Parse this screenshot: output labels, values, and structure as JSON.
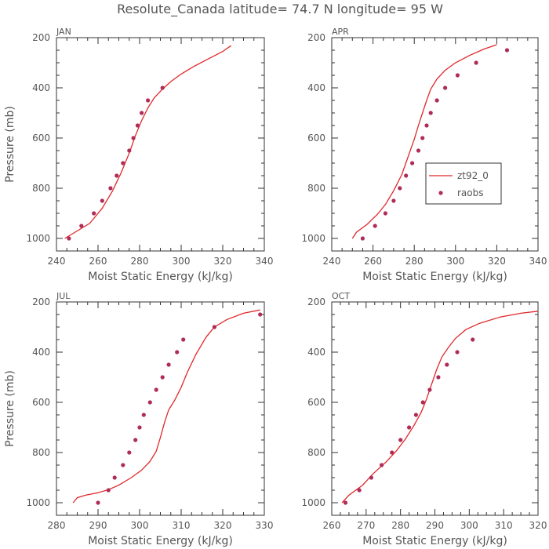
{
  "figure": {
    "title": "Resolute_Canada  latitude= 74.7 N longitude= 95 W"
  },
  "legend": {
    "panel": 1,
    "placement": "center-right",
    "entries": [
      {
        "label": "zt92_0",
        "kind": "line",
        "color": "#e0282a"
      },
      {
        "label": "raobs",
        "kind": "marker",
        "color": "#b02c58"
      }
    ]
  },
  "colors": {
    "model_line": "#e0282a",
    "raobs_marker": "#b02c58",
    "axes": "#333333",
    "text": "#555555"
  },
  "chart_data": [
    {
      "type": "line",
      "panel_label": "JAN",
      "xlabel": "Moist Static Energy (kJ/kg)",
      "ylabel": "Pressure (mb)",
      "xlim": [
        240,
        340
      ],
      "ylim": [
        1050,
        200
      ],
      "y_inverted": true,
      "xticks": [
        240,
        260,
        280,
        300,
        320,
        340
      ],
      "yticks": [
        200,
        400,
        600,
        800,
        1000
      ],
      "series": [
        {
          "name": "zt92_0",
          "kind": "line",
          "points": [
            [
              244,
              1000
            ],
            [
              249,
              975
            ],
            [
              256,
              940
            ],
            [
              262,
              880
            ],
            [
              267,
              810
            ],
            [
              271,
              740
            ],
            [
              275,
              660
            ],
            [
              278,
              590
            ],
            [
              281,
              530
            ],
            [
              284,
              480
            ],
            [
              287,
              440
            ],
            [
              291,
              405
            ],
            [
              295,
              375
            ],
            [
              300,
              345
            ],
            [
              306,
              315
            ],
            [
              313,
              285
            ],
            [
              320,
              255
            ],
            [
              324,
              232
            ]
          ]
        },
        {
          "name": "raobs",
          "kind": "marker",
          "points": [
            [
              246,
              1000
            ],
            [
              252,
              950
            ],
            [
              258,
              900
            ],
            [
              262,
              850
            ],
            [
              266,
              800
            ],
            [
              269,
              750
            ],
            [
              272,
              700
            ],
            [
              275,
              650
            ],
            [
              277,
              600
            ],
            [
              279,
              550
            ],
            [
              281,
              500
            ],
            [
              284,
              450
            ],
            [
              291,
              400
            ]
          ]
        }
      ]
    },
    {
      "type": "line",
      "panel_label": "APR",
      "xlabel": "Moist Static Energy (kJ/kg)",
      "ylabel": "",
      "xlim": [
        240,
        340
      ],
      "ylim": [
        1050,
        200
      ],
      "y_inverted": true,
      "xticks": [
        240,
        260,
        280,
        300,
        320,
        340
      ],
      "yticks": [
        200,
        400,
        600,
        800,
        1000
      ],
      "series": [
        {
          "name": "zt92_0",
          "kind": "line",
          "points": [
            [
              250,
              1000
            ],
            [
              252,
              975
            ],
            [
              257,
              945
            ],
            [
              262,
              905
            ],
            [
              266,
              865
            ],
            [
              270,
              810
            ],
            [
              274,
              745
            ],
            [
              277,
              675
            ],
            [
              280,
              605
            ],
            [
              282,
              550
            ],
            [
              284,
              500
            ],
            [
              286,
              450
            ],
            [
              288,
              405
            ],
            [
              291,
              365
            ],
            [
              295,
              330
            ],
            [
              300,
              300
            ],
            [
              307,
              270
            ],
            [
              314,
              245
            ],
            [
              320,
              228
            ]
          ]
        },
        {
          "name": "raobs",
          "kind": "marker",
          "points": [
            [
              255,
              1000
            ],
            [
              261,
              950
            ],
            [
              266,
              900
            ],
            [
              270,
              850
            ],
            [
              273,
              800
            ],
            [
              276,
              750
            ],
            [
              279,
              700
            ],
            [
              282,
              650
            ],
            [
              284,
              600
            ],
            [
              286,
              550
            ],
            [
              288,
              500
            ],
            [
              291,
              450
            ],
            [
              295,
              400
            ],
            [
              301,
              350
            ],
            [
              310,
              300
            ],
            [
              325,
              250
            ]
          ]
        }
      ]
    },
    {
      "type": "line",
      "panel_label": "JUL",
      "xlabel": "Moist Static Energy (kJ/kg)",
      "ylabel": "Pressure (mb)",
      "xlim": [
        280,
        330
      ],
      "ylim": [
        1050,
        200
      ],
      "y_inverted": true,
      "xticks": [
        280,
        290,
        300,
        310,
        320,
        330
      ],
      "yticks": [
        200,
        400,
        600,
        800,
        1000
      ],
      "series": [
        {
          "name": "zt92_0",
          "kind": "line",
          "points": [
            [
              284,
              1000
            ],
            [
              285,
              980
            ],
            [
              287,
              970
            ],
            [
              290,
              960
            ],
            [
              292.5,
              948
            ],
            [
              295,
              930
            ],
            [
              298,
              900
            ],
            [
              300.5,
              870
            ],
            [
              302.5,
              835
            ],
            [
              304,
              795
            ],
            [
              305,
              740
            ],
            [
              306,
              680
            ],
            [
              307,
              630
            ],
            [
              308.5,
              590
            ],
            [
              310,
              540
            ],
            [
              311.5,
              480
            ],
            [
              313.5,
              410
            ],
            [
              316,
              340
            ],
            [
              318,
              300
            ],
            [
              321,
              270
            ],
            [
              325,
              245
            ],
            [
              329,
              232
            ]
          ]
        },
        {
          "name": "raobs",
          "kind": "marker",
          "points": [
            [
              290,
              1000
            ],
            [
              292.5,
              950
            ],
            [
              294,
              900
            ],
            [
              296,
              850
            ],
            [
              297.5,
              800
            ],
            [
              299,
              750
            ],
            [
              300,
              700
            ],
            [
              301,
              650
            ],
            [
              302.5,
              600
            ],
            [
              304,
              550
            ],
            [
              305.5,
              500
            ],
            [
              307,
              450
            ],
            [
              309,
              400
            ],
            [
              310.5,
              350
            ],
            [
              318,
              300
            ],
            [
              329,
              250
            ]
          ]
        }
      ]
    },
    {
      "type": "line",
      "panel_label": "OCT",
      "xlabel": "Moist Static Energy (kJ/kg)",
      "ylabel": "",
      "xlim": [
        260,
        320
      ],
      "ylim": [
        1050,
        200
      ],
      "y_inverted": true,
      "xticks": [
        260,
        270,
        280,
        290,
        300,
        310,
        320
      ],
      "yticks": [
        200,
        400,
        600,
        800,
        1000
      ],
      "series": [
        {
          "name": "zt92_0",
          "kind": "line",
          "points": [
            [
              263,
              1000
            ],
            [
              265,
              970
            ],
            [
              269,
              930
            ],
            [
              272,
              885
            ],
            [
              276,
              835
            ],
            [
              279,
              790
            ],
            [
              281.5,
              745
            ],
            [
              284,
              690
            ],
            [
              286,
              640
            ],
            [
              287.5,
              590
            ],
            [
              289,
              530
            ],
            [
              290.5,
              470
            ],
            [
              292,
              420
            ],
            [
              294,
              380
            ],
            [
              296,
              345
            ],
            [
              299,
              310
            ],
            [
              303,
              285
            ],
            [
              309,
              260
            ],
            [
              315,
              245
            ],
            [
              320,
              237
            ]
          ]
        },
        {
          "name": "raobs",
          "kind": "marker",
          "points": [
            [
              264,
              1000
            ],
            [
              268,
              950
            ],
            [
              271.5,
              900
            ],
            [
              274.5,
              850
            ],
            [
              277.5,
              800
            ],
            [
              280,
              750
            ],
            [
              282.5,
              700
            ],
            [
              284.5,
              650
            ],
            [
              286.5,
              600
            ],
            [
              288.5,
              550
            ],
            [
              291,
              500
            ],
            [
              293.5,
              450
            ],
            [
              296.5,
              400
            ],
            [
              301,
              350
            ]
          ]
        }
      ]
    }
  ]
}
